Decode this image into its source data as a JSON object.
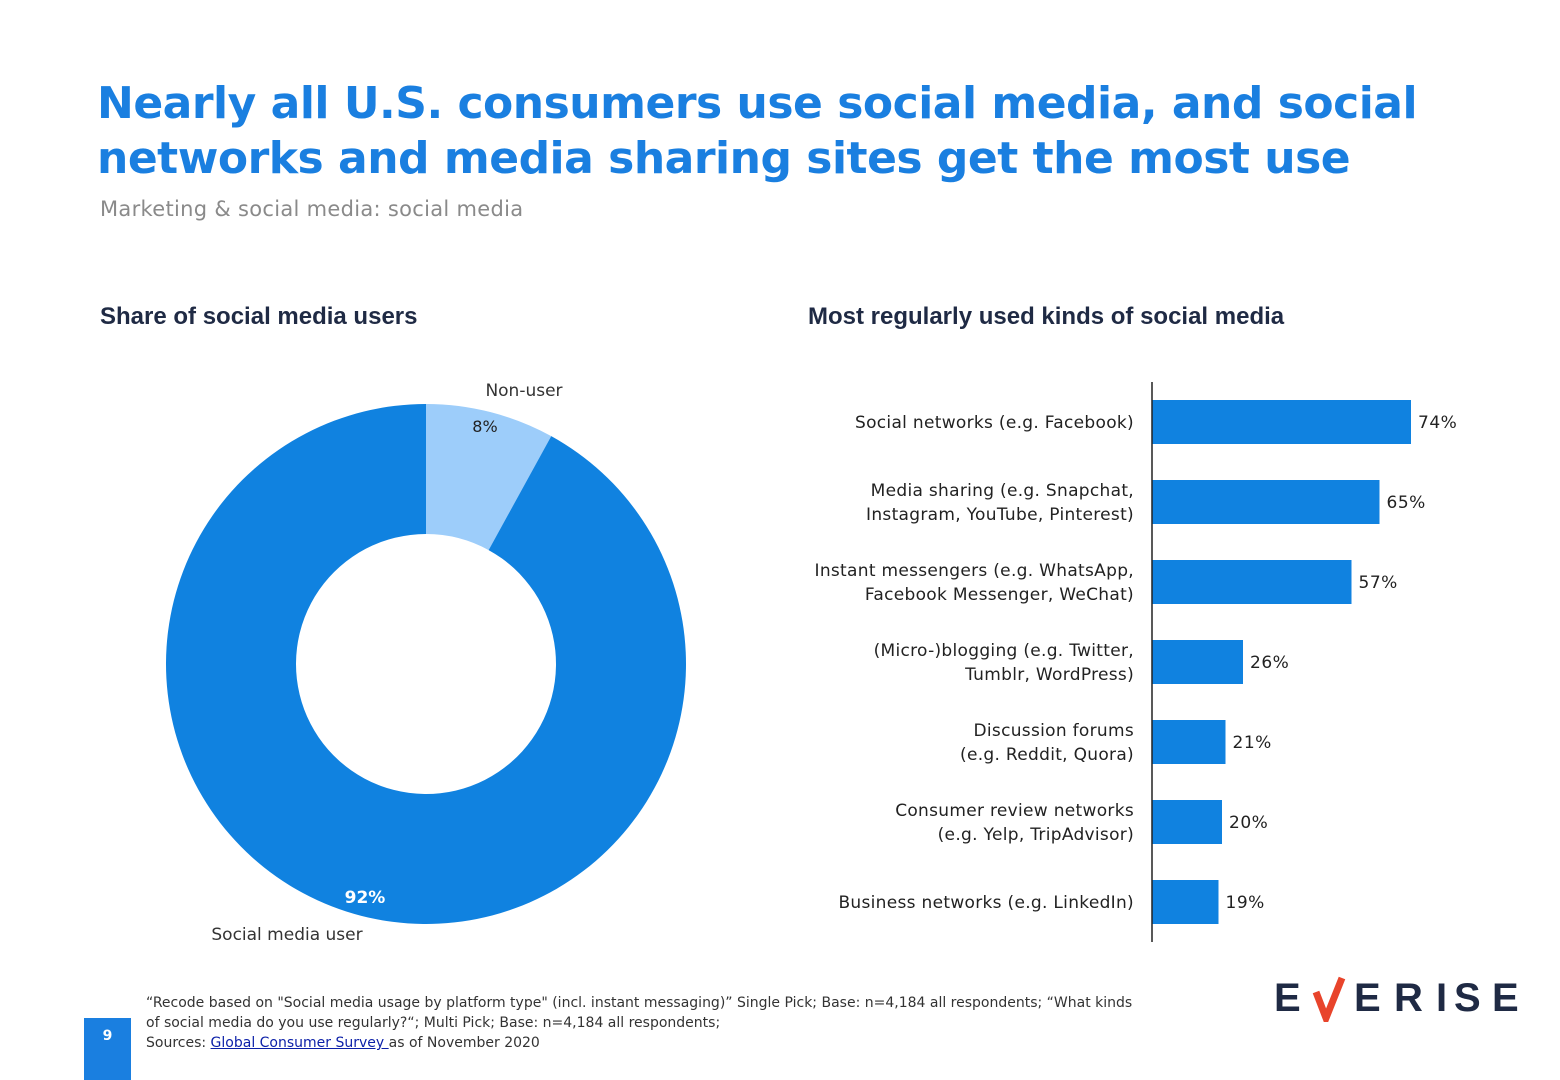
{
  "title": "Nearly all U.S. consumers use social media, and social networks and media sharing sites get the most use",
  "subtitle": "Marketing & social media: social media",
  "colors": {
    "title": "#1a7fe0",
    "primary": "#1082e0",
    "light": "#9dcdfa",
    "axis": "#222222"
  },
  "chart_data": [
    {
      "type": "pie",
      "title": "Share of social media users",
      "donut": true,
      "slices": [
        {
          "label": "Non-user",
          "value": 8,
          "value_label": "8%",
          "color": "#9dcdfa"
        },
        {
          "label": "Social media user",
          "value": 92,
          "value_label": "92%",
          "color": "#1082e0"
        }
      ]
    },
    {
      "type": "bar",
      "orientation": "horizontal",
      "title": "Most regularly used kinds of social media",
      "categories": [
        [
          "Social networks (e.g. Facebook)"
        ],
        [
          "Media sharing (e.g. Snapchat,",
          "Instagram, YouTube, Pinterest)"
        ],
        [
          "Instant messengers (e.g. WhatsApp,",
          "Facebook Messenger, WeChat)"
        ],
        [
          "(Micro-)blogging (e.g. Twitter,",
          "Tumblr, WordPress)"
        ],
        [
          "Discussion forums",
          "(e.g. Reddit, Quora)"
        ],
        [
          "Consumer review networks",
          "(e.g. Yelp, TripAdvisor)"
        ],
        [
          "Business networks (e.g. LinkedIn)"
        ]
      ],
      "values": [
        74,
        65,
        57,
        26,
        21,
        20,
        19
      ],
      "value_labels": [
        "74%",
        "65%",
        "57%",
        "26%",
        "21%",
        "20%",
        "19%"
      ],
      "color": "#1082e0"
    }
  ],
  "footer": {
    "note": "“Recode based on \"Social media usage by platform type\" (incl. instant messaging)” Single Pick; Base: n=4,184 all respondents; “What kinds of social media do you use regularly?“; Multi Pick; Base: n=4,184 all respondents;",
    "sources_prefix": "Sources: ",
    "sources_link": "Global Consumer Survey ",
    "sources_suffix": "as of November 2020"
  },
  "page_number": "9",
  "logo": {
    "text": "EVERISE",
    "accent_color": "#e8442b"
  }
}
